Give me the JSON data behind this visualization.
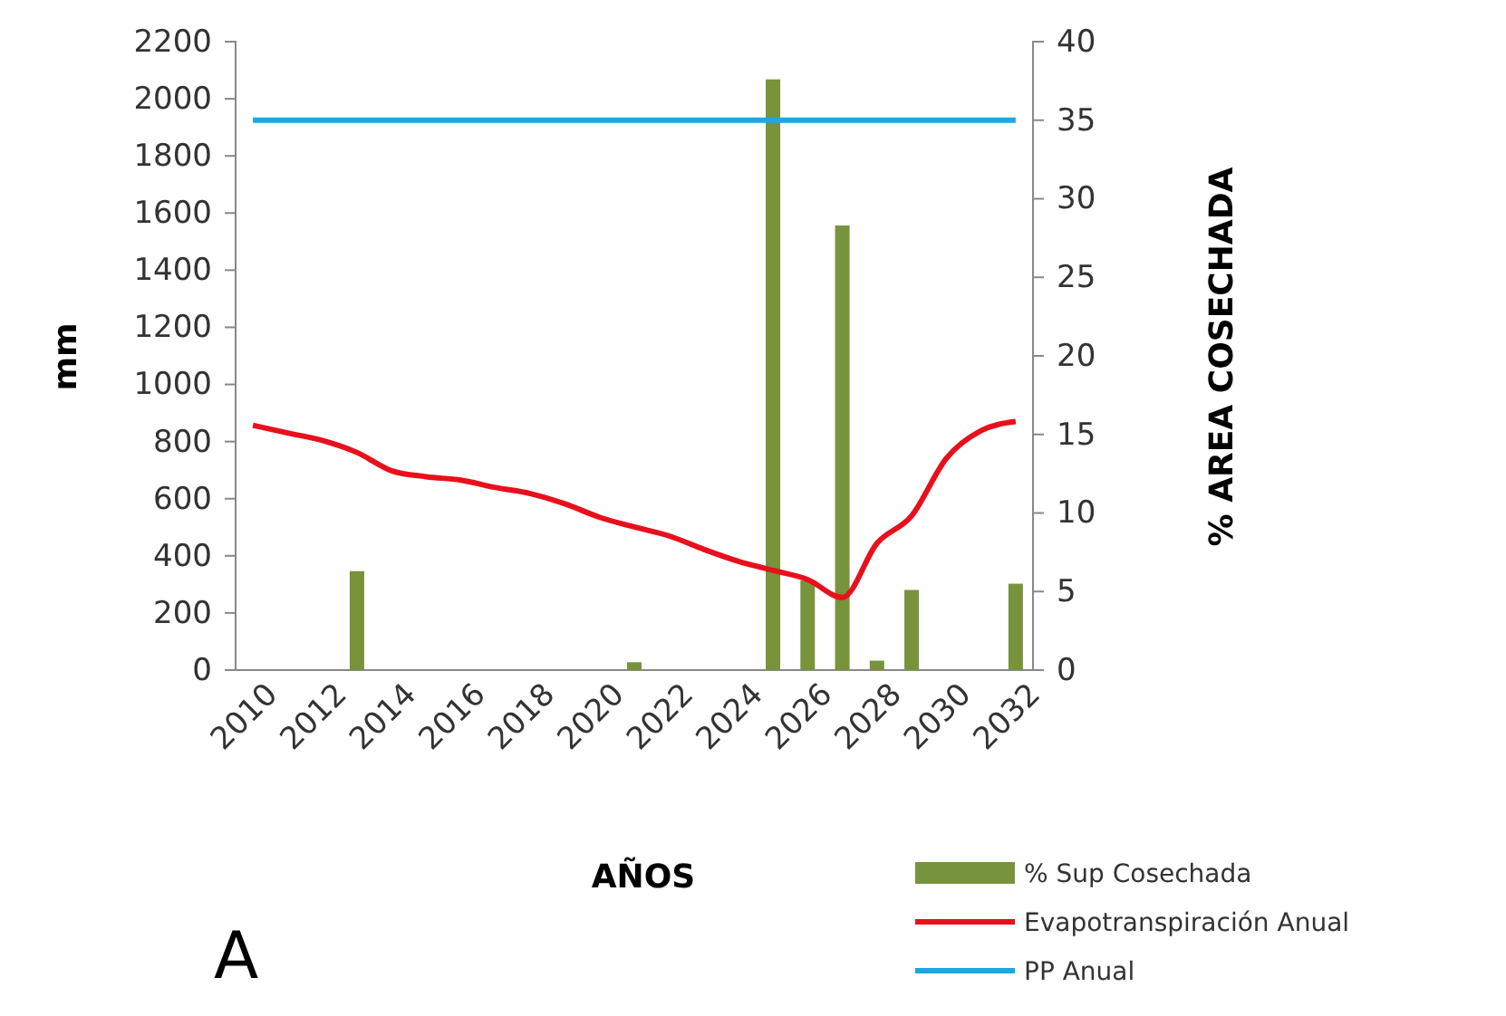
{
  "chart_data": {
    "type": "bar",
    "xlabel": "AÑOS",
    "ylabel": "mm",
    "y2label": "% AREA COSECHADA",
    "categories": [
      "2010",
      null,
      "2012",
      null,
      "2014",
      null,
      "2016",
      null,
      "2018",
      null,
      "2020",
      null,
      "2022",
      null,
      "2024",
      null,
      "2026",
      null,
      "2028",
      null,
      "2030",
      null,
      "2032"
    ],
    "ylim": [
      0,
      2200
    ],
    "yticks": [
      0,
      200,
      400,
      600,
      800,
      1000,
      1200,
      1400,
      1600,
      1800,
      2000,
      2200
    ],
    "y2lim": [
      0,
      40
    ],
    "y2ticks": [
      0,
      5,
      10,
      15,
      20,
      25,
      30,
      35,
      40
    ],
    "legend": "bottom right",
    "grid": false,
    "annotations": [
      "A"
    ],
    "series": [
      {
        "name": "% Sup Cosechada",
        "axis": "y2",
        "color": "#77933c",
        "values": [
          0,
          0,
          0,
          6.3,
          0,
          0,
          0,
          0,
          0,
          0,
          0,
          0.5,
          0,
          0,
          0,
          37.6,
          5.7,
          28.3,
          0.6,
          5.1,
          0,
          0,
          5.5
        ]
      },
      {
        "name": "Evapotranspiración Anual",
        "type": "line",
        "axis": "y",
        "color": "#e8101c",
        "values": [
          857,
          830,
          804,
          762,
          698,
          677,
          665,
          639,
          618,
          582,
          535,
          501,
          470,
          423,
          381,
          349,
          317,
          254,
          444,
          540,
          741,
          838,
          870
        ]
      },
      {
        "name": "PP Anual",
        "type": "line",
        "axis": "y",
        "color": "#1ea7e1",
        "values": [
          1925,
          1925,
          1925,
          1925,
          1925,
          1925,
          1925,
          1925,
          1925,
          1925,
          1925,
          1925,
          1925,
          1925,
          1925,
          1925,
          1925,
          1925,
          1925,
          1925,
          1925,
          1925,
          1925
        ]
      }
    ]
  }
}
